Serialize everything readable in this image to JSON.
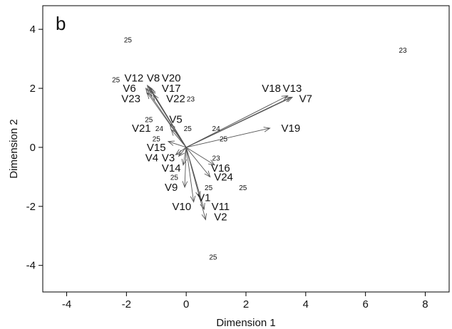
{
  "chart_data": {
    "type": "scatter",
    "panel_label": "b",
    "xlabel": "Dimension 1",
    "ylabel": "Dimension 2",
    "xlim": [
      -4.8,
      8.8
    ],
    "ylim": [
      -4.9,
      4.8
    ],
    "xticks": [
      -4,
      -2,
      0,
      2,
      4,
      6,
      8
    ],
    "yticks": [
      -4,
      -2,
      0,
      2,
      4
    ],
    "grid": false,
    "points": [
      {
        "label": "25",
        "x": -1.95,
        "y": 3.65
      },
      {
        "label": "23",
        "x": 7.25,
        "y": 3.3
      },
      {
        "label": "25",
        "x": -2.35,
        "y": 2.3
      },
      {
        "label": "23",
        "x": 0.15,
        "y": 1.65
      },
      {
        "label": "25",
        "x": -1.25,
        "y": 0.95
      },
      {
        "label": "24",
        "x": -0.9,
        "y": 0.65
      },
      {
        "label": "25",
        "x": 0.05,
        "y": 0.65
      },
      {
        "label": "24",
        "x": 1.0,
        "y": 0.65
      },
      {
        "label": "25",
        "x": 1.25,
        "y": 0.3
      },
      {
        "label": "25",
        "x": -1.0,
        "y": 0.3
      },
      {
        "label": "23",
        "x": 1.0,
        "y": -0.35
      },
      {
        "label": "25",
        "x": -0.4,
        "y": -1.0
      },
      {
        "label": "25",
        "x": 0.75,
        "y": -1.35
      },
      {
        "label": "25",
        "x": 1.9,
        "y": -1.35
      },
      {
        "label": "25",
        "x": 0.9,
        "y": -3.7
      }
    ],
    "loadings": [
      {
        "label": "V12",
        "x": -1.3,
        "y": 2.1,
        "lx": -1.75,
        "ly": 2.35
      },
      {
        "label": "V8",
        "x": -1.25,
        "y": 2.05,
        "lx": -1.1,
        "ly": 2.35
      },
      {
        "label": "V20",
        "x": -1.2,
        "y": 2.0,
        "lx": -0.5,
        "ly": 2.35
      },
      {
        "label": "V6",
        "x": -1.35,
        "y": 2.0,
        "lx": -1.9,
        "ly": 2.0
      },
      {
        "label": "V17",
        "x": -1.2,
        "y": 1.95,
        "lx": -0.5,
        "ly": 2.0
      },
      {
        "label": "V23",
        "x": -1.3,
        "y": 1.85,
        "lx": -1.85,
        "ly": 1.65
      },
      {
        "label": "V22",
        "x": -1.1,
        "y": 1.8,
        "lx": -0.35,
        "ly": 1.65
      },
      {
        "label": "V18",
        "x": 3.4,
        "y": 1.75,
        "lx": 2.85,
        "ly": 2.0
      },
      {
        "label": "V13",
        "x": 3.5,
        "y": 1.7,
        "lx": 3.55,
        "ly": 2.0
      },
      {
        "label": "V7",
        "x": 3.55,
        "y": 1.7,
        "lx": 4.0,
        "ly": 1.65
      },
      {
        "label": "V5",
        "x": -0.55,
        "y": 0.8,
        "lx": -0.35,
        "ly": 0.95
      },
      {
        "label": "V21",
        "x": -0.5,
        "y": 0.6,
        "lx": -1.5,
        "ly": 0.65
      },
      {
        "label": "V19",
        "x": 2.8,
        "y": 0.65,
        "lx": 3.5,
        "ly": 0.65
      },
      {
        "label": "V15",
        "x": -0.6,
        "y": 0.2,
        "lx": -1.0,
        "ly": 0.0
      },
      {
        "label": "V4",
        "x": -0.35,
        "y": -0.25,
        "lx": -1.15,
        "ly": -0.35
      },
      {
        "label": "V3",
        "x": -0.25,
        "y": -0.3,
        "lx": -0.6,
        "ly": -0.35
      },
      {
        "label": "V14",
        "x": -0.1,
        "y": -0.6,
        "lx": -0.5,
        "ly": -0.7
      },
      {
        "label": "V16",
        "x": 0.95,
        "y": -0.6,
        "lx": 1.15,
        "ly": -0.7
      },
      {
        "label": "V24",
        "x": 0.8,
        "y": -1.0,
        "lx": 1.25,
        "ly": -1.0
      },
      {
        "label": "V9",
        "x": -0.05,
        "y": -1.35,
        "lx": -0.5,
        "ly": -1.35
      },
      {
        "label": "V1",
        "x": 0.45,
        "y": -1.7,
        "lx": 0.6,
        "ly": -1.7
      },
      {
        "label": "V10",
        "x": 0.25,
        "y": -1.85,
        "lx": -0.15,
        "ly": -2.0
      },
      {
        "label": "V11",
        "x": 0.6,
        "y": -2.1,
        "lx": 1.15,
        "ly": -2.0
      },
      {
        "label": "V2",
        "x": 0.65,
        "y": -2.45,
        "lx": 1.15,
        "ly": -2.35
      }
    ]
  }
}
